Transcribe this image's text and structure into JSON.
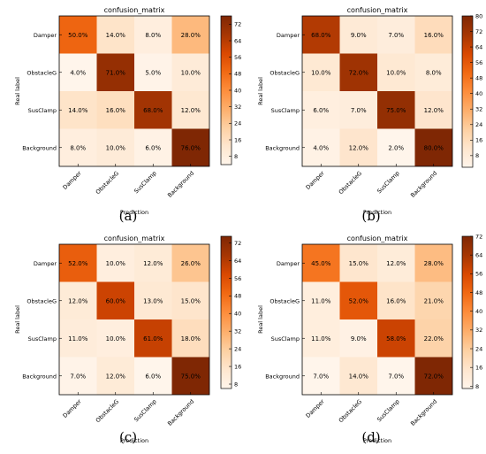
{
  "figure": {
    "captions": [
      "(a)",
      "(b)",
      "(c)",
      "(d)"
    ]
  },
  "colormap": {
    "name": "Oranges",
    "low": "#fff5eb",
    "high": "#7f2704"
  },
  "chart_data": [
    {
      "type": "heatmap",
      "title": "confusion_matrix",
      "xlabel": "Prediction",
      "ylabel": "Real label",
      "x_categories": [
        "Damper",
        "ObstacleG",
        "SusClamp",
        "Background"
      ],
      "y_categories": [
        "Damper",
        "ObstacleG",
        "SusClamp",
        "Background"
      ],
      "values": [
        [
          50,
          14,
          8,
          28
        ],
        [
          4,
          71,
          5,
          10
        ],
        [
          14,
          16,
          68,
          12
        ],
        [
          8,
          10,
          6,
          76
        ]
      ],
      "cell_labels": [
        [
          "50.0%",
          "14.0%",
          "8.0%",
          "28.0%"
        ],
        [
          "4.0%",
          "71.0%",
          "5.0%",
          "10.0%"
        ],
        [
          "14.0%",
          "16.0%",
          "68.0%",
          "12.0%"
        ],
        [
          "8.0%",
          "10.0%",
          "6.0%",
          "76.0%"
        ]
      ],
      "colorbar": {
        "vmin": 4,
        "vmax": 76,
        "ticks": [
          8,
          16,
          24,
          32,
          40,
          48,
          56,
          64,
          72
        ]
      }
    },
    {
      "type": "heatmap",
      "title": "confusion_matrix",
      "xlabel": "Prediction",
      "ylabel": "Real label",
      "x_categories": [
        "Damper",
        "ObstacleG",
        "SusClamp",
        "Background"
      ],
      "y_categories": [
        "Damper",
        "ObstacleG",
        "SusClamp",
        "Background"
      ],
      "values": [
        [
          68,
          9,
          7,
          16
        ],
        [
          10,
          72,
          10,
          8
        ],
        [
          6,
          7,
          75,
          12
        ],
        [
          4,
          12,
          2,
          80
        ]
      ],
      "cell_labels": [
        [
          "68.0%",
          "9.0%",
          "7.0%",
          "16.0%"
        ],
        [
          "10.0%",
          "72.0%",
          "10.0%",
          "8.0%"
        ],
        [
          "6.0%",
          "7.0%",
          "75.0%",
          "12.0%"
        ],
        [
          "4.0%",
          "12.0%",
          "2.0%",
          "80.0%"
        ]
      ],
      "colorbar": {
        "vmin": 2,
        "vmax": 80,
        "ticks": [
          8,
          16,
          24,
          32,
          40,
          48,
          56,
          64,
          72,
          80
        ]
      }
    },
    {
      "type": "heatmap",
      "title": "confusion_matrix",
      "xlabel": "Prediction",
      "ylabel": "Real label",
      "x_categories": [
        "Damper",
        "ObstacleG",
        "SusClamp",
        "Background"
      ],
      "y_categories": [
        "Damper",
        "ObstacleG",
        "SusClamp",
        "Background"
      ],
      "values": [
        [
          52,
          10,
          12,
          26
        ],
        [
          12,
          60,
          13,
          15
        ],
        [
          11,
          10,
          61,
          18
        ],
        [
          7,
          12,
          6,
          75
        ]
      ],
      "cell_labels": [
        [
          "52.0%",
          "10.0%",
          "12.0%",
          "26.0%"
        ],
        [
          "12.0%",
          "60.0%",
          "13.0%",
          "15.0%"
        ],
        [
          "11.0%",
          "10.0%",
          "61.0%",
          "18.0%"
        ],
        [
          "7.0%",
          "12.0%",
          "6.0%",
          "75.0%"
        ]
      ],
      "colorbar": {
        "vmin": 6,
        "vmax": 75,
        "ticks": [
          8,
          16,
          24,
          32,
          40,
          48,
          56,
          64,
          72
        ]
      }
    },
    {
      "type": "heatmap",
      "title": "confusion_matrix",
      "xlabel": "Prediction",
      "ylabel": "Real label",
      "x_categories": [
        "Damper",
        "ObstacleG",
        "SusClamp",
        "Background"
      ],
      "y_categories": [
        "Damper",
        "ObstacleG",
        "SusClamp",
        "Background"
      ],
      "values": [
        [
          45,
          15,
          12,
          28
        ],
        [
          11,
          52,
          16,
          21
        ],
        [
          11,
          9,
          58,
          22
        ],
        [
          7,
          14,
          7,
          72
        ]
      ],
      "cell_labels": [
        [
          "45.0%",
          "15.0%",
          "12.0%",
          "28.0%"
        ],
        [
          "11.0%",
          "52.0%",
          "16.0%",
          "21.0%"
        ],
        [
          "11.0%",
          "9.0%",
          "58.0%",
          "22.0%"
        ],
        [
          "7.0%",
          "14.0%",
          "7.0%",
          "72.0%"
        ]
      ],
      "colorbar": {
        "vmin": 7,
        "vmax": 72,
        "ticks": [
          8,
          16,
          24,
          32,
          40,
          48,
          56,
          64,
          72
        ]
      }
    }
  ]
}
